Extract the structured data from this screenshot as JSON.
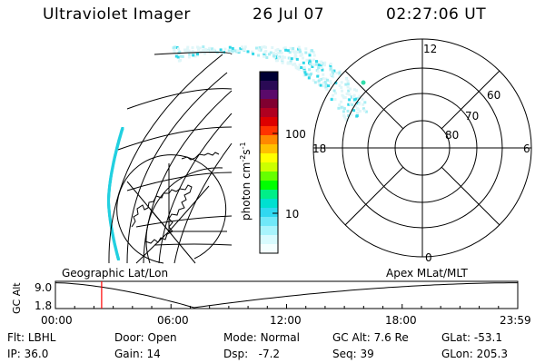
{
  "header": {
    "instrument": "Ultraviolet Imager",
    "date": "26 Jul 07",
    "time": "02:27:06 UT"
  },
  "colorbar": {
    "unit_label": "photon cm",
    "unit_sup1": "-2",
    "unit_mid": "s",
    "unit_sup2": "-1",
    "ticks": [
      {
        "label": "100",
        "value": 100
      },
      {
        "label": "10",
        "value": 10
      }
    ],
    "colors": [
      "#000033",
      "#2a0a55",
      "#5a0a6a",
      "#800030",
      "#b00020",
      "#dd0000",
      "#ff3300",
      "#ff8800",
      "#ffc000",
      "#ffff00",
      "#ccff00",
      "#66ff00",
      "#00ff00",
      "#00ee88",
      "#00e0d0",
      "#30d8f0",
      "#70e8f8",
      "#a8f4fc",
      "#d8fbfe",
      "#f4ffff"
    ]
  },
  "polar_plot": {
    "mlt_labels": {
      "top": "12",
      "left": "18",
      "right": "6",
      "bottom": "0"
    },
    "lat_labels": [
      "60",
      "70",
      "80"
    ],
    "auroral_point_color": "#33ddaa"
  },
  "timeline": {
    "left_label": "Geographic Lat/Lon",
    "right_label": "Apex MLat/MLT",
    "axis_title": "GC Alt",
    "y_ticks": [
      "9.0",
      "1.8"
    ],
    "x_ticks": [
      "00:00",
      "06:00",
      "12:00",
      "18:00",
      "23:59"
    ],
    "current_fraction": 0.1,
    "marker_color": "#ff0000"
  },
  "status": {
    "row1": [
      {
        "key": "Flt:",
        "value": "LBHL"
      },
      {
        "key": "Door:",
        "value": "Open"
      },
      {
        "key": "Mode:",
        "value": "Normal"
      },
      {
        "key": "GC Alt:",
        "value": "7.6 Re"
      },
      {
        "key": "GLat:",
        "value": "-53.1"
      }
    ],
    "row2": [
      {
        "key": "IP:",
        "value": "36.0"
      },
      {
        "key": "Gain:",
        "value": "14"
      },
      {
        "key": "Dsp:",
        "value": "-7.2"
      },
      {
        "key": "Seq:",
        "value": "39"
      },
      {
        "key": "GLon:",
        "value": "205.3"
      }
    ]
  }
}
